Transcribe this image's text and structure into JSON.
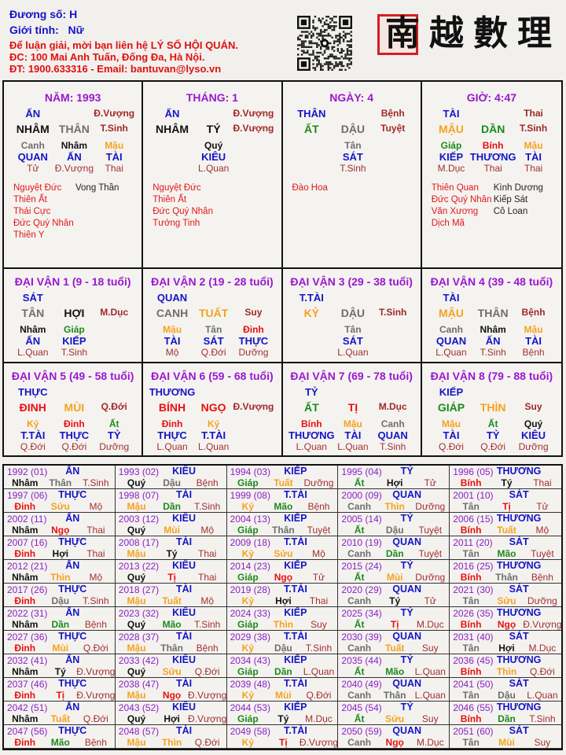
{
  "header": {
    "duong_so": "Đương số: H",
    "gioi_tinh": "Giới tính:   Nữ",
    "contact_line1": "Để luận giải, mời bạn liên hệ LÝ SỐ HỘI QUÁN.",
    "contact_line2": "ĐC: 100 Mai Anh Tuấn, Đống Đa, Hà Nội.",
    "contact_line3": "ĐT: 1900.633316 - Email: bantuvan@lyso.vn",
    "logo_text": "南越數理",
    "qr_icon": "qr-code"
  },
  "element_colors": {
    "water": "#111111",
    "metal": "#6e6e6e",
    "earth": "#f5a21c",
    "wood": "#1a8a1a",
    "fire": "#e81010"
  },
  "pillars": [
    {
      "title": "NĂM: 1993",
      "top_god": "ẤN",
      "top_stage": "Đ.Vượng",
      "stem": "NHÂM",
      "branch": "THÂN",
      "stage": "T.Sinh",
      "hidden": [
        {
          "stem": "Canh",
          "god": "QUAN",
          "stage": "Tử"
        },
        {
          "stem": "Nhâm",
          "god": "ẤN",
          "stage": "Đ.Vượng"
        },
        {
          "stem": "Mậu",
          "god": "TÀI",
          "stage": "Thai"
        }
      ],
      "stars_good": [
        "Nguyệt Đức",
        "Thiên Ất",
        "Thái Cực",
        "Đức Quý Nhân",
        "Thiên Y"
      ],
      "stars_bad": [
        "Vong Thần"
      ]
    },
    {
      "title": "THÁNG: 1",
      "top_god": "ẤN",
      "top_stage": "Đ.Vượng",
      "stem": "NHÂM",
      "branch": "TÝ",
      "stage": "Đ.Vượng",
      "hidden": [
        {
          "stem": "Quý",
          "god": "KIÊU",
          "stage": "L.Quan"
        }
      ],
      "stars_good": [
        "Nguyệt Đức",
        "Thiên Ất",
        "Đức Quý Nhân",
        "Tướng Tinh"
      ],
      "stars_bad": []
    },
    {
      "title": "NGÀY: 4",
      "top_god": "THÂN",
      "top_stage": "Bệnh",
      "stem": "ẤT",
      "branch": "DẬU",
      "stage": "Tuyệt",
      "hidden": [
        {
          "stem": "Tân",
          "god": "SÁT",
          "stage": "T.Sinh"
        }
      ],
      "stars_good": [
        "Đào Hoa"
      ],
      "stars_bad": []
    },
    {
      "title": "GIỜ: 4:47",
      "top_god": "TÀI",
      "top_stage": "Thai",
      "stem": "MẬU",
      "branch": "DẦN",
      "stage": "T.Sinh",
      "hidden": [
        {
          "stem": "Giáp",
          "god": "KIẾP",
          "stage": "M.Dục"
        },
        {
          "stem": "Bính",
          "god": "THƯƠNG",
          "stage": "Thai"
        },
        {
          "stem": "Mậu",
          "god": "TÀI",
          "stage": "Thai"
        }
      ],
      "stars_good": [
        "Thiên Quan",
        "Đức Quý Nhân",
        "Văn Xương",
        "Dịch Mã"
      ],
      "stars_bad": [
        "Kình Dương",
        "Kiếp Sát",
        "Cô Loan"
      ]
    }
  ],
  "dai_van": [
    {
      "title": "ĐẠI VẬN 1 (9 - 18 tuổi)",
      "top_god": "SÁT",
      "stem": "TÂN",
      "branch": "HỢI",
      "stage": "M.Dục",
      "hidden": [
        {
          "stem": "Nhâm",
          "god": "ẤN",
          "stage": "L.Quan"
        },
        {
          "stem": "Giáp",
          "god": "KIẾP",
          "stage": "T.Sinh"
        }
      ]
    },
    {
      "title": "ĐẠI VẬN 2 (19 - 28 tuổi)",
      "top_god": "QUAN",
      "stem": "CANH",
      "branch": "TUẤT",
      "stage": "Suy",
      "hidden": [
        {
          "stem": "Mậu",
          "god": "TÀI",
          "stage": "Mộ"
        },
        {
          "stem": "Tân",
          "god": "SÁT",
          "stage": "Q.Đới"
        },
        {
          "stem": "Đinh",
          "god": "THỰC",
          "stage": "Dưỡng"
        }
      ]
    },
    {
      "title": "ĐẠI VẬN 3 (29 - 38 tuổi)",
      "top_god": "T.TÀI",
      "stem": "KỶ",
      "branch": "DẬU",
      "stage": "T.Sinh",
      "hidden": [
        {
          "stem": "Tân",
          "god": "SÁT",
          "stage": "L.Quan"
        }
      ]
    },
    {
      "title": "ĐẠI VẬN 4 (39 - 48 tuổi)",
      "top_god": "TÀI",
      "stem": "MẬU",
      "branch": "THÂN",
      "stage": "Bệnh",
      "hidden": [
        {
          "stem": "Canh",
          "god": "QUAN",
          "stage": "L.Quan"
        },
        {
          "stem": "Nhâm",
          "god": "ẤN",
          "stage": "T.Sinh"
        },
        {
          "stem": "Mậu",
          "god": "TÀI",
          "stage": "Bệnh"
        }
      ]
    },
    {
      "title": "ĐẠI VẬN 5 (49 - 58 tuổi)",
      "top_god": "THỰC",
      "stem": "ĐINH",
      "branch": "MÙI",
      "stage": "Q.Đới",
      "hidden": [
        {
          "stem": "Kỷ",
          "god": "T.TÀI",
          "stage": "Q.Đới"
        },
        {
          "stem": "Đinh",
          "god": "THỰC",
          "stage": "Q.Đới"
        },
        {
          "stem": "Ất",
          "god": "TỶ",
          "stage": "Dưỡng"
        }
      ]
    },
    {
      "title": "ĐẠI VẬN 6 (59 - 68 tuổi)",
      "top_god": "THƯƠNG",
      "stem": "BÍNH",
      "branch": "NGỌ",
      "stage": "Đ.Vượng",
      "hidden": [
        {
          "stem": "Đinh",
          "god": "THỰC",
          "stage": "L.Quan"
        },
        {
          "stem": "Kỷ",
          "god": "T.TÀI",
          "stage": "L.Quan"
        }
      ]
    },
    {
      "title": "ĐẠI VẬN 7 (69 - 78 tuổi)",
      "top_god": "TỶ",
      "stem": "ẤT",
      "branch": "TỊ",
      "stage": "M.Dục",
      "hidden": [
        {
          "stem": "Bính",
          "god": "THƯƠNG",
          "stage": "L.Quan"
        },
        {
          "stem": "Mậu",
          "god": "TÀI",
          "stage": "L.Quan"
        },
        {
          "stem": "Canh",
          "god": "QUAN",
          "stage": "T.Sinh"
        }
      ]
    },
    {
      "title": "ĐẠI VẬN 8 (79 - 88 tuổi)",
      "top_god": "KIẾP",
      "stem": "GIÁP",
      "branch": "THÌN",
      "stage": "Suy",
      "hidden": [
        {
          "stem": "Mậu",
          "god": "TÀI",
          "stage": "Q.Đới"
        },
        {
          "stem": "Ất",
          "god": "TỶ",
          "stage": "Q.Đới"
        },
        {
          "stem": "Quý",
          "god": "KIÊU",
          "stage": "Dưỡng"
        }
      ]
    }
  ],
  "years": [
    {
      "y": "1992 (01)",
      "g": "ẤN",
      "s": "Nhâm",
      "b": "Thân",
      "t": "T.Sinh"
    },
    {
      "y": "1993 (02)",
      "g": "KIÊU",
      "s": "Quý",
      "b": "Dậu",
      "t": "Bệnh"
    },
    {
      "y": "1994 (03)",
      "g": "KIẾP",
      "s": "Giáp",
      "b": "Tuất",
      "t": "Dưỡng"
    },
    {
      "y": "1995 (04)",
      "g": "TỶ",
      "s": "Ất",
      "b": "Hợi",
      "t": "Tử"
    },
    {
      "y": "1996 (05)",
      "g": "THƯƠNG",
      "s": "Bính",
      "b": "Tý",
      "t": "Thai"
    },
    {
      "y": "1997 (06)",
      "g": "THỰC",
      "s": "Đinh",
      "b": "Sửu",
      "t": "Mộ"
    },
    {
      "y": "1998 (07)",
      "g": "TÀI",
      "s": "Mậu",
      "b": "Dần",
      "t": "T.Sinh"
    },
    {
      "y": "1999 (08)",
      "g": "T.TÀI",
      "s": "Kỷ",
      "b": "Mão",
      "t": "Bệnh"
    },
    {
      "y": "2000 (09)",
      "g": "QUAN",
      "s": "Canh",
      "b": "Thìn",
      "t": "Dưỡng"
    },
    {
      "y": "2001 (10)",
      "g": "SÁT",
      "s": "Tân",
      "b": "Tị",
      "t": "Tử"
    },
    {
      "y": "2002 (11)",
      "g": "ẤN",
      "s": "Nhâm",
      "b": "Ngọ",
      "t": "Thai"
    },
    {
      "y": "2003 (12)",
      "g": "KIÊU",
      "s": "Quý",
      "b": "Mùi",
      "t": "Mộ"
    },
    {
      "y": "2004 (13)",
      "g": "KIẾP",
      "s": "Giáp",
      "b": "Thân",
      "t": "Tuyệt"
    },
    {
      "y": "2005 (14)",
      "g": "TỶ",
      "s": "Ất",
      "b": "Dậu",
      "t": "Tuyệt"
    },
    {
      "y": "2006 (15)",
      "g": "THƯƠNG",
      "s": "Bính",
      "b": "Tuất",
      "t": "Mộ"
    },
    {
      "y": "2007 (16)",
      "g": "THỰC",
      "s": "Đinh",
      "b": "Hợi",
      "t": "Thai"
    },
    {
      "y": "2008 (17)",
      "g": "TÀI",
      "s": "Mậu",
      "b": "Tý",
      "t": "Thai"
    },
    {
      "y": "2009 (18)",
      "g": "T.TÀI",
      "s": "Kỷ",
      "b": "Sửu",
      "t": "Mộ"
    },
    {
      "y": "2010 (19)",
      "g": "QUAN",
      "s": "Canh",
      "b": "Dần",
      "t": "Tuyệt"
    },
    {
      "y": "2011 (20)",
      "g": "SÁT",
      "s": "Tân",
      "b": "Mão",
      "t": "Tuyệt"
    },
    {
      "y": "2012 (21)",
      "g": "ẤN",
      "s": "Nhâm",
      "b": "Thìn",
      "t": "Mộ"
    },
    {
      "y": "2013 (22)",
      "g": "KIÊU",
      "s": "Quý",
      "b": "Tị",
      "t": "Thai"
    },
    {
      "y": "2014 (23)",
      "g": "KIẾP",
      "s": "Giáp",
      "b": "Ngọ",
      "t": "Tử"
    },
    {
      "y": "2015 (24)",
      "g": "TỶ",
      "s": "Ất",
      "b": "Mùi",
      "t": "Dưỡng"
    },
    {
      "y": "2016 (25)",
      "g": "THƯƠNG",
      "s": "Bính",
      "b": "Thân",
      "t": "Bệnh"
    },
    {
      "y": "2017 (26)",
      "g": "THỰC",
      "s": "Đinh",
      "b": "Dậu",
      "t": "T.Sinh"
    },
    {
      "y": "2018 (27)",
      "g": "TÀI",
      "s": "Mậu",
      "b": "Tuất",
      "t": "Mộ"
    },
    {
      "y": "2019 (28)",
      "g": "T.TÀI",
      "s": "Kỷ",
      "b": "Hợi",
      "t": "Thai"
    },
    {
      "y": "2020 (29)",
      "g": "QUAN",
      "s": "Canh",
      "b": "Tý",
      "t": "Tử"
    },
    {
      "y": "2021 (30)",
      "g": "SÁT",
      "s": "Tân",
      "b": "Sửu",
      "t": "Dưỡng"
    },
    {
      "y": "2022 (31)",
      "g": "ẤN",
      "s": "Nhâm",
      "b": "Dần",
      "t": "Bệnh"
    },
    {
      "y": "2023 (32)",
      "g": "KIÊU",
      "s": "Quý",
      "b": "Mão",
      "t": "T.Sinh"
    },
    {
      "y": "2024 (33)",
      "g": "KIẾP",
      "s": "Giáp",
      "b": "Thìn",
      "t": "Suy"
    },
    {
      "y": "2025 (34)",
      "g": "TỶ",
      "s": "Ất",
      "b": "Tị",
      "t": "M.Dục"
    },
    {
      "y": "2026 (35)",
      "g": "THƯƠNG",
      "s": "Bính",
      "b": "Ngọ",
      "t": "Đ.Vượng"
    },
    {
      "y": "2027 (36)",
      "g": "THỰC",
      "s": "Đinh",
      "b": "Mùi",
      "t": "Q.Đới"
    },
    {
      "y": "2028 (37)",
      "g": "TÀI",
      "s": "Mậu",
      "b": "Thân",
      "t": "Bệnh"
    },
    {
      "y": "2029 (38)",
      "g": "T.TÀI",
      "s": "Kỷ",
      "b": "Dậu",
      "t": "T.Sinh"
    },
    {
      "y": "2030 (39)",
      "g": "QUAN",
      "s": "Canh",
      "b": "Tuất",
      "t": "Suy"
    },
    {
      "y": "2031 (40)",
      "g": "SÁT",
      "s": "Tân",
      "b": "Hợi",
      "t": "M.Dục"
    },
    {
      "y": "2032 (41)",
      "g": "ẤN",
      "s": "Nhâm",
      "b": "Tý",
      "t": "Đ.Vượng"
    },
    {
      "y": "2033 (42)",
      "g": "KIÊU",
      "s": "Quý",
      "b": "Sửu",
      "t": "Q.Đới"
    },
    {
      "y": "2034 (43)",
      "g": "KIẾP",
      "s": "Giáp",
      "b": "Dần",
      "t": "L.Quan"
    },
    {
      "y": "2035 (44)",
      "g": "TỶ",
      "s": "Ất",
      "b": "Mão",
      "t": "L.Quan"
    },
    {
      "y": "2036 (45)",
      "g": "THƯƠNG",
      "s": "Bính",
      "b": "Thìn",
      "t": "Q.Đới"
    },
    {
      "y": "2037 (46)",
      "g": "THỰC",
      "s": "Đinh",
      "b": "Tị",
      "t": "Đ.Vượng"
    },
    {
      "y": "2038 (47)",
      "g": "TÀI",
      "s": "Mậu",
      "b": "Ngọ",
      "t": "Đ.Vượng"
    },
    {
      "y": "2039 (48)",
      "g": "T.TÀI",
      "s": "Kỷ",
      "b": "Mùi",
      "t": "Q.Đới"
    },
    {
      "y": "2040 (49)",
      "g": "QUAN",
      "s": "Canh",
      "b": "Thân",
      "t": "L.Quan"
    },
    {
      "y": "2041 (50)",
      "g": "SÁT",
      "s": "Tân",
      "b": "Dậu",
      "t": "L.Quan"
    },
    {
      "y": "2042 (51)",
      "g": "ẤN",
      "s": "Nhâm",
      "b": "Tuất",
      "t": "Q.Đới"
    },
    {
      "y": "2043 (52)",
      "g": "KIÊU",
      "s": "Quý",
      "b": "Hợi",
      "t": "Đ.Vượng"
    },
    {
      "y": "2044 (53)",
      "g": "KIẾP",
      "s": "Giáp",
      "b": "Tý",
      "t": "M.Dục"
    },
    {
      "y": "2045 (54)",
      "g": "TỶ",
      "s": "Ất",
      "b": "Sửu",
      "t": "Suy"
    },
    {
      "y": "2046 (55)",
      "g": "THƯƠNG",
      "s": "Bính",
      "b": "Dần",
      "t": "T.Sinh"
    },
    {
      "y": "2047 (56)",
      "g": "THỰC",
      "s": "Đinh",
      "b": "Mão",
      "t": "Bệnh"
    },
    {
      "y": "2048 (57)",
      "g": "TÀI",
      "s": "Mậu",
      "b": "Thìn",
      "t": "Q.Đới"
    },
    {
      "y": "2049 (58)",
      "g": "T.TÀI",
      "s": "Kỷ",
      "b": "Tị",
      "t": "Đ.Vượng"
    },
    {
      "y": "2050 (59)",
      "g": "QUAN",
      "s": "Canh",
      "b": "Ngọ",
      "t": "M.Dục"
    },
    {
      "y": "2051 (60)",
      "g": "SÁT",
      "s": "Tân",
      "b": "Mùi",
      "t": "Suy"
    }
  ]
}
